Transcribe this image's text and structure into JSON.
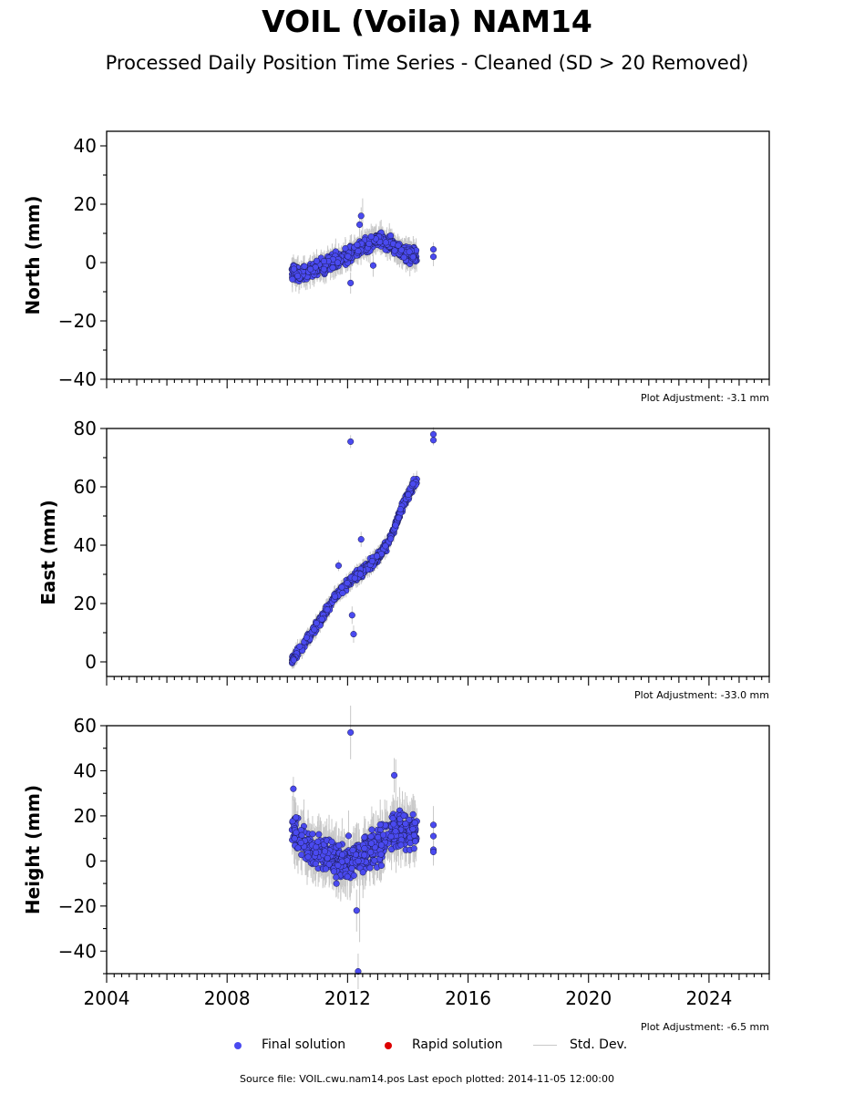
{
  "title": "VOIL (Voila) NAM14",
  "subtitle": "Processed Daily Position Time Series - Cleaned (SD > 20 Removed)",
  "legend": {
    "final": "Final solution",
    "rapid": "Rapid solution",
    "std": "Std. Dev."
  },
  "footer": "Source file: VOIL.cwu.nam14.pos  Last epoch plotted: 2014-11-05 12:00:00",
  "colors": {
    "final": "#4a4af0",
    "rapid": "#dd0000",
    "std": "#c8c8c8"
  },
  "chart_data": [
    {
      "type": "scatter",
      "ylabel": "North (mm)",
      "xlim": [
        2004,
        2026
      ],
      "ylim": [
        -40,
        45
      ],
      "yticks": [
        -40,
        -20,
        0,
        20,
        40
      ],
      "adjustment": "Plot Adjustment: -3.1 mm",
      "trend": [
        [
          2010.15,
          -3
        ],
        [
          2010.6,
          -4
        ],
        [
          2011.0,
          -2
        ],
        [
          2011.5,
          0
        ],
        [
          2012.0,
          2
        ],
        [
          2012.4,
          5
        ],
        [
          2012.8,
          7
        ],
        [
          2013.2,
          8
        ],
        [
          2013.6,
          5
        ],
        [
          2014.0,
          3
        ],
        [
          2014.3,
          2
        ]
      ],
      "scatter": 2.5,
      "outliers": [
        [
          2012.45,
          16
        ],
        [
          2012.4,
          13
        ],
        [
          2012.1,
          -7
        ],
        [
          2012.85,
          -1
        ],
        [
          2014.85,
          4.5
        ],
        [
          2014.85,
          2
        ]
      ],
      "std_extra": [
        [
          2012.5,
          22
        ]
      ]
    },
    {
      "type": "scatter",
      "ylabel": "East (mm)",
      "xlim": [
        2004,
        2026
      ],
      "ylim": [
        -5,
        80
      ],
      "yticks": [
        0,
        20,
        40,
        60,
        80
      ],
      "adjustment": "Plot Adjustment: -33.0 mm",
      "trend": [
        [
          2010.15,
          1
        ],
        [
          2010.5,
          5
        ],
        [
          2011.0,
          13
        ],
        [
          2011.5,
          21
        ],
        [
          2012.0,
          27
        ],
        [
          2012.5,
          31
        ],
        [
          2013.0,
          36
        ],
        [
          2013.3,
          40
        ],
        [
          2013.6,
          47
        ],
        [
          2013.8,
          53
        ],
        [
          2014.1,
          59
        ],
        [
          2014.3,
          62
        ]
      ],
      "scatter": 1.5,
      "outliers": [
        [
          2012.1,
          75.5
        ],
        [
          2012.15,
          16
        ],
        [
          2012.2,
          9.5
        ],
        [
          2011.7,
          33
        ],
        [
          2012.45,
          42
        ],
        [
          2014.85,
          78
        ],
        [
          2014.85,
          76
        ]
      ],
      "std_extra": []
    },
    {
      "type": "scatter",
      "ylabel": "Height (mm)",
      "xlim": [
        2004,
        2026
      ],
      "ylim": [
        -50,
        60
      ],
      "yticks": [
        -40,
        -20,
        0,
        20,
        40,
        60
      ],
      "adjustment": "Plot Adjustment: -6.5 mm",
      "trend": [
        [
          2010.15,
          12
        ],
        [
          2010.6,
          8
        ],
        [
          2011.0,
          4
        ],
        [
          2011.5,
          2
        ],
        [
          2012.0,
          0
        ],
        [
          2012.5,
          3
        ],
        [
          2013.0,
          7
        ],
        [
          2013.5,
          13
        ],
        [
          2014.0,
          14
        ],
        [
          2014.3,
          12
        ]
      ],
      "scatter": 8,
      "outliers": [
        [
          2012.1,
          57
        ],
        [
          2012.35,
          -49
        ],
        [
          2010.2,
          32
        ],
        [
          2013.55,
          38
        ],
        [
          2012.3,
          -22
        ],
        [
          2014.85,
          16
        ],
        [
          2014.85,
          11
        ],
        [
          2014.85,
          5
        ],
        [
          2014.85,
          4
        ]
      ],
      "std_extra": [
        [
          2012.4,
          -36
        ],
        [
          2013.6,
          45
        ]
      ]
    }
  ],
  "x_axis": {
    "ticks": [
      2004,
      2008,
      2012,
      2016,
      2020,
      2024
    ],
    "labels": [
      "2004",
      "2008",
      "2012",
      "2016",
      "2020",
      "2024"
    ]
  },
  "y_tick_labels": [
    [
      "−40",
      "−20",
      "0",
      "20",
      "40"
    ],
    [
      "0",
      "20",
      "40",
      "60",
      "80"
    ],
    [
      "−40",
      "−20",
      "0",
      "20",
      "40",
      "60"
    ]
  ]
}
